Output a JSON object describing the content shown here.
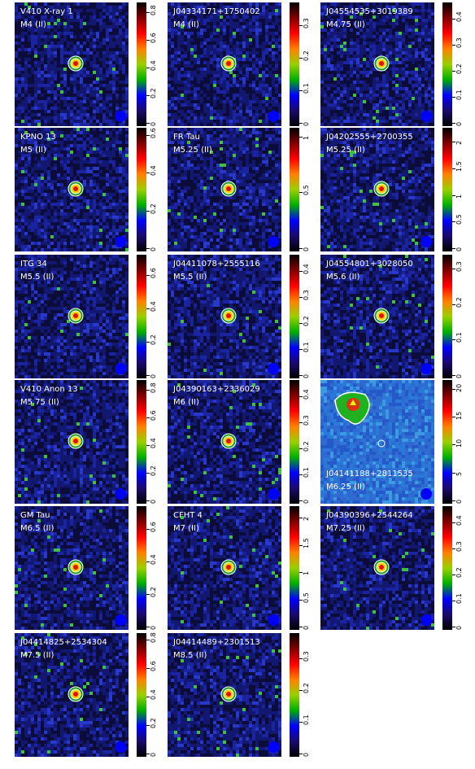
{
  "panels": [
    {
      "name": "V410 X-ray 1",
      "spt": "M4 (II)",
      "ticks": [
        "0",
        "0.2",
        "0.4",
        "0.6",
        "0.8"
      ],
      "tickvals": [
        0,
        0.2,
        0.4,
        0.6,
        0.8
      ],
      "vmax": 0.85,
      "bright": false
    },
    {
      "name": "J04334171+1750402",
      "spt": "M4 (II)",
      "ticks": [
        "0",
        "0.1",
        "0.2",
        "0.3"
      ],
      "tickvals": [
        0,
        0.1,
        0.2,
        0.3
      ],
      "vmax": 0.36,
      "bright": false
    },
    {
      "name": "J04554535+3019389",
      "spt": "M4.75 (II)",
      "ticks": [
        "0",
        "0.1",
        "0.2",
        "0.3",
        "0.4"
      ],
      "tickvals": [
        0,
        0.1,
        0.2,
        0.3,
        0.4
      ],
      "vmax": 0.45,
      "bright": false
    },
    {
      "name": "KPNO 13",
      "spt": "M5 (II)",
      "ticks": [
        "0",
        "0.2",
        "0.4",
        "0.6"
      ],
      "tickvals": [
        0,
        0.2,
        0.4,
        0.6
      ],
      "vmax": 0.62,
      "bright": false
    },
    {
      "name": "FR Tau",
      "spt": "M5.25 (II)",
      "ticks": [
        "0",
        "0.5",
        "1"
      ],
      "tickvals": [
        0,
        0.5,
        1
      ],
      "vmax": 1.05,
      "bright": false
    },
    {
      "name": "J04202555+2700355",
      "spt": "M5.25 (II)",
      "ticks": [
        "0",
        "0.5",
        "1",
        "1.5",
        "2"
      ],
      "tickvals": [
        0,
        0.5,
        1,
        1.5,
        2
      ],
      "vmax": 2.2,
      "bright": false
    },
    {
      "name": "ITG 34",
      "spt": "M5.5 (II)",
      "ticks": [
        "0",
        "0.2",
        "0.4",
        "0.6"
      ],
      "tickvals": [
        0,
        0.2,
        0.4,
        0.6
      ],
      "vmax": 0.7,
      "bright": false
    },
    {
      "name": "J04411078+2555116",
      "spt": "M5.5 (II)",
      "ticks": [
        "0",
        "0.1",
        "0.2",
        "0.3",
        "0.4"
      ],
      "tickvals": [
        0,
        0.1,
        0.2,
        0.3,
        0.4
      ],
      "vmax": 0.45,
      "bright": false
    },
    {
      "name": "J04554801+3028050",
      "spt": "M5.6 (II)",
      "ticks": [
        "0",
        "0.1",
        "0.2",
        "0.3"
      ],
      "tickvals": [
        0,
        0.1,
        0.2,
        0.3
      ],
      "vmax": 0.33,
      "bright": false
    },
    {
      "name": "V410 Anon 13",
      "spt": "M5.75 (II)",
      "ticks": [
        "0",
        "0.2",
        "0.4",
        "0.6",
        "0.8"
      ],
      "tickvals": [
        0,
        0.2,
        0.4,
        0.6,
        0.8
      ],
      "vmax": 0.85,
      "bright": false
    },
    {
      "name": "J04390163+2336029",
      "spt": "M6 (II)",
      "ticks": [
        "0",
        "0.1",
        "0.2",
        "0.3",
        "0.4"
      ],
      "tickvals": [
        0,
        0.1,
        0.2,
        0.3,
        0.4
      ],
      "vmax": 0.45,
      "bright": false
    },
    {
      "name": "J04141188+2811535",
      "spt": "M6.25 (II)",
      "ticks": [
        "0",
        "5",
        "10",
        "15",
        "20"
      ],
      "tickvals": [
        0,
        5,
        10,
        15,
        20
      ],
      "vmax": 21,
      "bright": true
    },
    {
      "name": "GM Tau",
      "spt": "M6.5 (II)",
      "ticks": [
        "0",
        "0.2",
        "0.4",
        "0.6"
      ],
      "tickvals": [
        0,
        0.2,
        0.4,
        0.6
      ],
      "vmax": 0.72,
      "bright": false
    },
    {
      "name": "CFHT 4",
      "spt": "M7 (II)",
      "ticks": [
        "0",
        "0.5",
        "1",
        "1.5",
        "2"
      ],
      "tickvals": [
        0,
        0.5,
        1,
        1.5,
        2
      ],
      "vmax": 2.15,
      "bright": false
    },
    {
      "name": "J04390396+2544264",
      "spt": "M7.25 (II)",
      "ticks": [
        "0",
        "0.1",
        "0.2",
        "0.3",
        "0.4"
      ],
      "tickvals": [
        0,
        0.1,
        0.2,
        0.3,
        0.4
      ],
      "vmax": 0.45,
      "bright": false
    },
    {
      "name": "J04414825+2534304",
      "spt": "M7.5 (II)",
      "ticks": [
        "0",
        "0.2",
        "0.4",
        "0.6",
        "0.8"
      ],
      "tickvals": [
        0,
        0.2,
        0.4,
        0.6,
        0.8
      ],
      "vmax": 0.82,
      "bright": false
    },
    {
      "name": "J04414489+2301513",
      "spt": "M8.5 (II)",
      "ticks": [
        "0",
        "0.1",
        "0.2",
        "0.3"
      ],
      "tickvals": [
        0,
        0.1,
        0.2,
        0.3
      ],
      "vmax": 0.37,
      "bright": false
    }
  ],
  "colors": {
    "background_dark": "#0a0a2e",
    "noise": "#1a2a9a",
    "contour": "#ffffff",
    "source_core": "#ff2020",
    "marker": "#ffff00",
    "beam": "#0000ff",
    "bright_bg": "#2a6fd0"
  }
}
